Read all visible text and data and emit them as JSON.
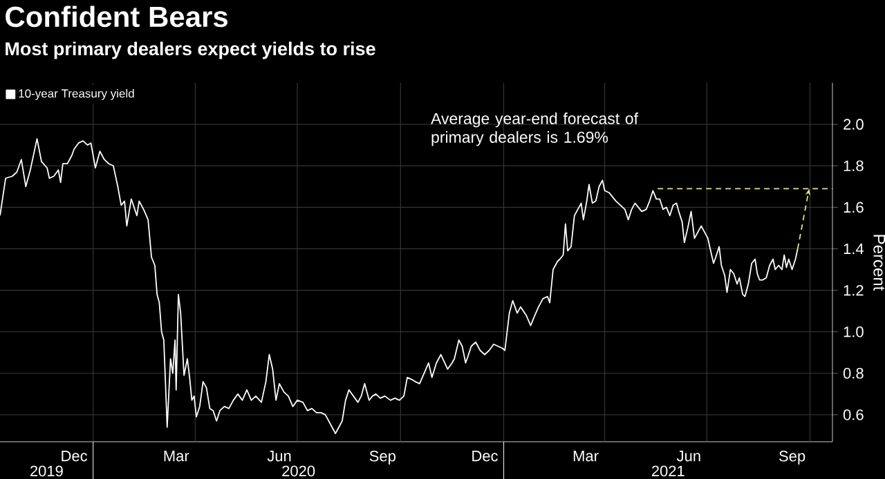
{
  "chart_data": {
    "type": "line",
    "title": "Confident Bears",
    "subtitle": "Most primary dealers expect yields to rise",
    "ylabel": "Percent",
    "annotations": [
      "Average year-end forecast of primary dealers is 1.69%",
      "2019",
      "2020",
      "2021"
    ],
    "series": [
      {
        "name": "10-year Treasury yield",
        "color": "#ffffff",
        "x": [
          "2019-10-10",
          "2019-10-15",
          "2019-10-21",
          "2019-10-25",
          "2019-10-29",
          "2019-11-02",
          "2019-11-06",
          "2019-11-12",
          "2019-11-16",
          "2019-11-21",
          "2019-11-23",
          "2019-11-27",
          "2019-12-01",
          "2019-12-03",
          "2019-12-05",
          "2019-12-09",
          "2019-12-13",
          "2019-12-15",
          "2019-12-19",
          "2019-12-23",
          "2019-12-27",
          "2019-12-30",
          "2020-01-03",
          "2020-01-07",
          "2020-01-11",
          "2020-01-15",
          "2020-01-19",
          "2020-01-23",
          "2020-01-26",
          "2020-01-29",
          "2020-01-31",
          "2020-02-04",
          "2020-02-09",
          "2020-02-11",
          "2020-02-15",
          "2020-02-19",
          "2020-02-22",
          "2020-02-25",
          "2020-02-27",
          "2020-02-29",
          "2020-03-02",
          "2020-03-04",
          "2020-03-07",
          "2020-03-10",
          "2020-03-12",
          "2020-03-14",
          "2020-03-15",
          "2020-03-17",
          "2020-03-19",
          "2020-03-22",
          "2020-03-25",
          "2020-03-27",
          "2020-03-29",
          "2020-03-31",
          "2020-04-02",
          "2020-04-05",
          "2020-04-08",
          "2020-04-11",
          "2020-04-14",
          "2020-04-17",
          "2020-04-20",
          "2020-04-23",
          "2020-04-27",
          "2020-05-01",
          "2020-05-05",
          "2020-05-09",
          "2020-05-13",
          "2020-05-17",
          "2020-05-21",
          "2020-05-25",
          "2020-05-30",
          "2020-06-03",
          "2020-06-06",
          "2020-06-09",
          "2020-06-12",
          "2020-06-15",
          "2020-06-19",
          "2020-06-23",
          "2020-06-27",
          "2020-07-01",
          "2020-07-06",
          "2020-07-10",
          "2020-07-14",
          "2020-07-18",
          "2020-07-22",
          "2020-07-26",
          "2020-07-29",
          "2020-08-01",
          "2020-08-04",
          "2020-08-07",
          "2020-08-10",
          "2020-08-13",
          "2020-08-16",
          "2020-08-20",
          "2020-08-24",
          "2020-08-27",
          "2020-08-30",
          "2020-09-03",
          "2020-09-06",
          "2020-09-09",
          "2020-09-13",
          "2020-09-17",
          "2020-09-22",
          "2020-09-26",
          "2020-09-30",
          "2020-10-04",
          "2020-10-07",
          "2020-10-11",
          "2020-10-14",
          "2020-10-18",
          "2020-10-22",
          "2020-10-26",
          "2020-10-29",
          "2020-11-02",
          "2020-11-06",
          "2020-11-12",
          "2020-11-16",
          "2020-11-18",
          "2020-11-22",
          "2020-11-25",
          "2020-11-28",
          "2020-11-30",
          "2020-12-03",
          "2020-12-07",
          "2020-12-11",
          "2020-12-15",
          "2020-12-19",
          "2020-12-23",
          "2020-12-27",
          "2020-12-31",
          "2021-01-02",
          "2021-01-06",
          "2021-01-09",
          "2021-01-13",
          "2021-01-16",
          "2021-01-21",
          "2021-01-25",
          "2021-01-28",
          "2021-02-01",
          "2021-02-05",
          "2021-02-09",
          "2021-02-11",
          "2021-02-14",
          "2021-02-18",
          "2021-02-20",
          "2021-02-23",
          "2021-02-25",
          "2021-02-27",
          "2021-03-02",
          "2021-03-05",
          "2021-03-08",
          "2021-03-11",
          "2021-03-13",
          "2021-03-16",
          "2021-03-18",
          "2021-03-21",
          "2021-03-24",
          "2021-03-27",
          "2021-03-30",
          "2021-04-01",
          "2021-04-05",
          "2021-04-08",
          "2021-04-11",
          "2021-04-15",
          "2021-04-19",
          "2021-04-22",
          "2021-04-25",
          "2021-04-28",
          "2021-05-01",
          "2021-05-04",
          "2021-05-08",
          "2021-05-11",
          "2021-05-14",
          "2021-05-17",
          "2021-05-20",
          "2021-05-23",
          "2021-05-26",
          "2021-05-29",
          "2021-06-01",
          "2021-06-04",
          "2021-06-06",
          "2021-06-09",
          "2021-06-11",
          "2021-06-14",
          "2021-06-17",
          "2021-06-20",
          "2021-06-23",
          "2021-06-26",
          "2021-06-29",
          "2021-07-02",
          "2021-07-04",
          "2021-07-07",
          "2021-07-09",
          "2021-07-12",
          "2021-07-14",
          "2021-07-17",
          "2021-07-19",
          "2021-07-22",
          "2021-07-25",
          "2021-07-28",
          "2021-07-30",
          "2021-08-02",
          "2021-08-04",
          "2021-08-07",
          "2021-08-10",
          "2021-08-13",
          "2021-08-15",
          "2021-08-17",
          "2021-08-20",
          "2021-08-23",
          "2021-08-26",
          "2021-08-29",
          "2021-08-31",
          "2021-09-03",
          "2021-09-06",
          "2021-09-08",
          "2021-09-10",
          "2021-09-12",
          "2021-09-15",
          "2021-09-18",
          "2021-09-20"
        ],
        "values": [
          1.56,
          1.74,
          1.75,
          1.77,
          1.83,
          1.7,
          1.78,
          1.93,
          1.82,
          1.79,
          1.74,
          1.75,
          1.78,
          1.72,
          1.81,
          1.81,
          1.85,
          1.88,
          1.91,
          1.92,
          1.9,
          1.91,
          1.79,
          1.87,
          1.83,
          1.81,
          1.8,
          1.7,
          1.61,
          1.63,
          1.51,
          1.64,
          1.56,
          1.63,
          1.59,
          1.54,
          1.36,
          1.32,
          1.18,
          1.14,
          1.0,
          0.96,
          0.54,
          0.87,
          0.8,
          0.96,
          0.72,
          1.18,
          1.09,
          0.79,
          0.87,
          0.78,
          0.67,
          0.69,
          0.59,
          0.64,
          0.76,
          0.73,
          0.63,
          0.62,
          0.57,
          0.62,
          0.64,
          0.63,
          0.67,
          0.7,
          0.67,
          0.72,
          0.67,
          0.69,
          0.66,
          0.76,
          0.89,
          0.82,
          0.67,
          0.75,
          0.71,
          0.69,
          0.64,
          0.67,
          0.66,
          0.62,
          0.63,
          0.61,
          0.61,
          0.6,
          0.57,
          0.54,
          0.51,
          0.54,
          0.57,
          0.67,
          0.72,
          0.69,
          0.66,
          0.69,
          0.75,
          0.67,
          0.69,
          0.7,
          0.68,
          0.69,
          0.67,
          0.68,
          0.67,
          0.69,
          0.78,
          0.77,
          0.76,
          0.75,
          0.8,
          0.85,
          0.78,
          0.85,
          0.89,
          0.82,
          0.85,
          0.87,
          0.96,
          0.93,
          0.85,
          0.88,
          0.93,
          0.95,
          0.91,
          0.89,
          0.91,
          0.94,
          0.93,
          0.92,
          0.91,
          1.09,
          1.15,
          1.09,
          1.12,
          1.08,
          1.03,
          1.07,
          1.12,
          1.16,
          1.17,
          1.14,
          1.3,
          1.34,
          1.35,
          1.37,
          1.52,
          1.39,
          1.41,
          1.56,
          1.59,
          1.62,
          1.54,
          1.63,
          1.71,
          1.62,
          1.63,
          1.7,
          1.73,
          1.68,
          1.67,
          1.65,
          1.63,
          1.61,
          1.59,
          1.54,
          1.59,
          1.62,
          1.6,
          1.58,
          1.59,
          1.63,
          1.68,
          1.64,
          1.64,
          1.59,
          1.6,
          1.56,
          1.61,
          1.62,
          1.58,
          1.53,
          1.43,
          1.5,
          1.58,
          1.45,
          1.48,
          1.51,
          1.48,
          1.45,
          1.4,
          1.33,
          1.36,
          1.41,
          1.32,
          1.27,
          1.19,
          1.3,
          1.28,
          1.23,
          1.26,
          1.18,
          1.17,
          1.23,
          1.33,
          1.35,
          1.28,
          1.25,
          1.25,
          1.26,
          1.32,
          1.35,
          1.3,
          1.32,
          1.3,
          1.37,
          1.31,
          1.35,
          1.3,
          1.35,
          1.4
        ]
      }
    ],
    "xlim": [
      "2019-10-10",
      "2021-10-21"
    ],
    "xticks": [
      {
        "value": "2019-12-15",
        "label": "Dec"
      },
      {
        "value": "2020-03-15",
        "label": "Mar"
      },
      {
        "value": "2020-06-15",
        "label": "Jun"
      },
      {
        "value": "2020-09-15",
        "label": "Sep"
      },
      {
        "value": "2020-12-15",
        "label": "Dec"
      },
      {
        "value": "2021-03-15",
        "label": "Mar"
      },
      {
        "value": "2021-06-15",
        "label": "Jun"
      },
      {
        "value": "2021-09-15",
        "label": "Sep"
      }
    ],
    "ylim": [
      0.47,
      2.2
    ],
    "yticks": [
      0.6,
      0.8,
      {
        "value": 1,
        "label": "1.0"
      },
      1.2,
      1.4,
      1.6,
      1.8,
      {
        "value": 2,
        "label": "2.0"
      }
    ],
    "ref_lines": [
      {
        "axis": "y",
        "value": 1.69,
        "color": "#e8e27a",
        "line_style": "dashed"
      }
    ],
    "grid": true,
    "legend": "top left"
  }
}
